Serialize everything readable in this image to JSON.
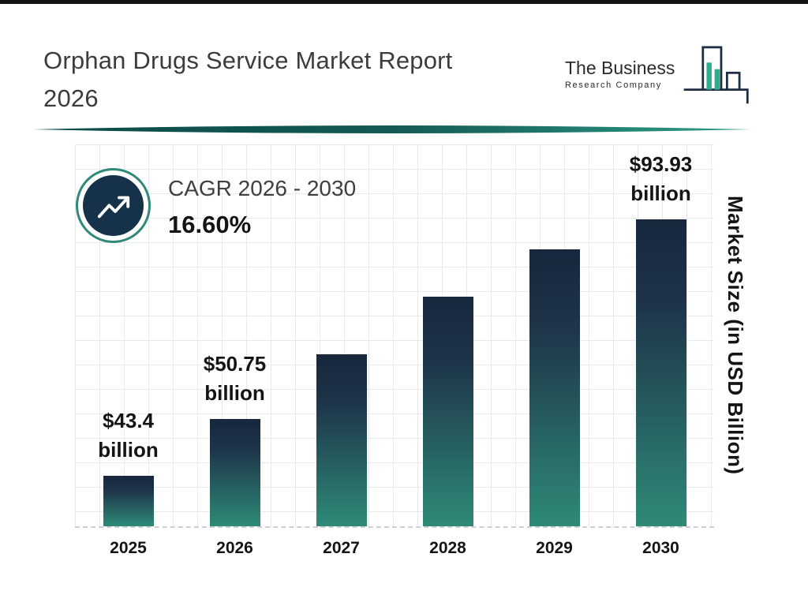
{
  "header": {
    "title_line1": "Orphan Drugs Service Market Report",
    "title_line2": "2026",
    "logo": {
      "line1": "The Business",
      "line2": "Research Company"
    }
  },
  "cagr": {
    "label": "CAGR 2026 - 2030",
    "value": "16.60%"
  },
  "chart_data": {
    "type": "bar",
    "title": "Orphan Drugs Service Market Report 2026",
    "ylabel": "Market Size (in USD Billion)",
    "xlabel": "",
    "grid": true,
    "categories": [
      "2025",
      "2026",
      "2027",
      "2028",
      "2029",
      "2030"
    ],
    "values": [
      43.4,
      50.75,
      59.2,
      69.0,
      80.5,
      93.93
    ],
    "points": [
      {
        "year": "2025",
        "value": 43.4,
        "label": "$43.4",
        "unit": "billion",
        "display_height_pct": 13.2
      },
      {
        "year": "2026",
        "value": 50.75,
        "label": "$50.75",
        "unit": "billion",
        "display_height_pct": 28.2
      },
      {
        "year": "2027",
        "value": 59.2,
        "label": null,
        "unit": null,
        "display_height_pct": 45.0
      },
      {
        "year": "2028",
        "value": 69.0,
        "label": null,
        "unit": null,
        "display_height_pct": 60.2
      },
      {
        "year": "2029",
        "value": 80.5,
        "label": null,
        "unit": null,
        "display_height_pct": 72.5
      },
      {
        "year": "2030",
        "value": 93.93,
        "label": "$93.93",
        "unit": "billion",
        "display_height_pct": 80.3
      }
    ],
    "colors": {
      "bar_gradient_top": "#17273c",
      "bar_gradient_bottom": "#2e8a77",
      "accent_teal": "#2e8a77",
      "logo_fill_teal": "#2fae8f",
      "grid_line": "#e9e9e9"
    }
  }
}
